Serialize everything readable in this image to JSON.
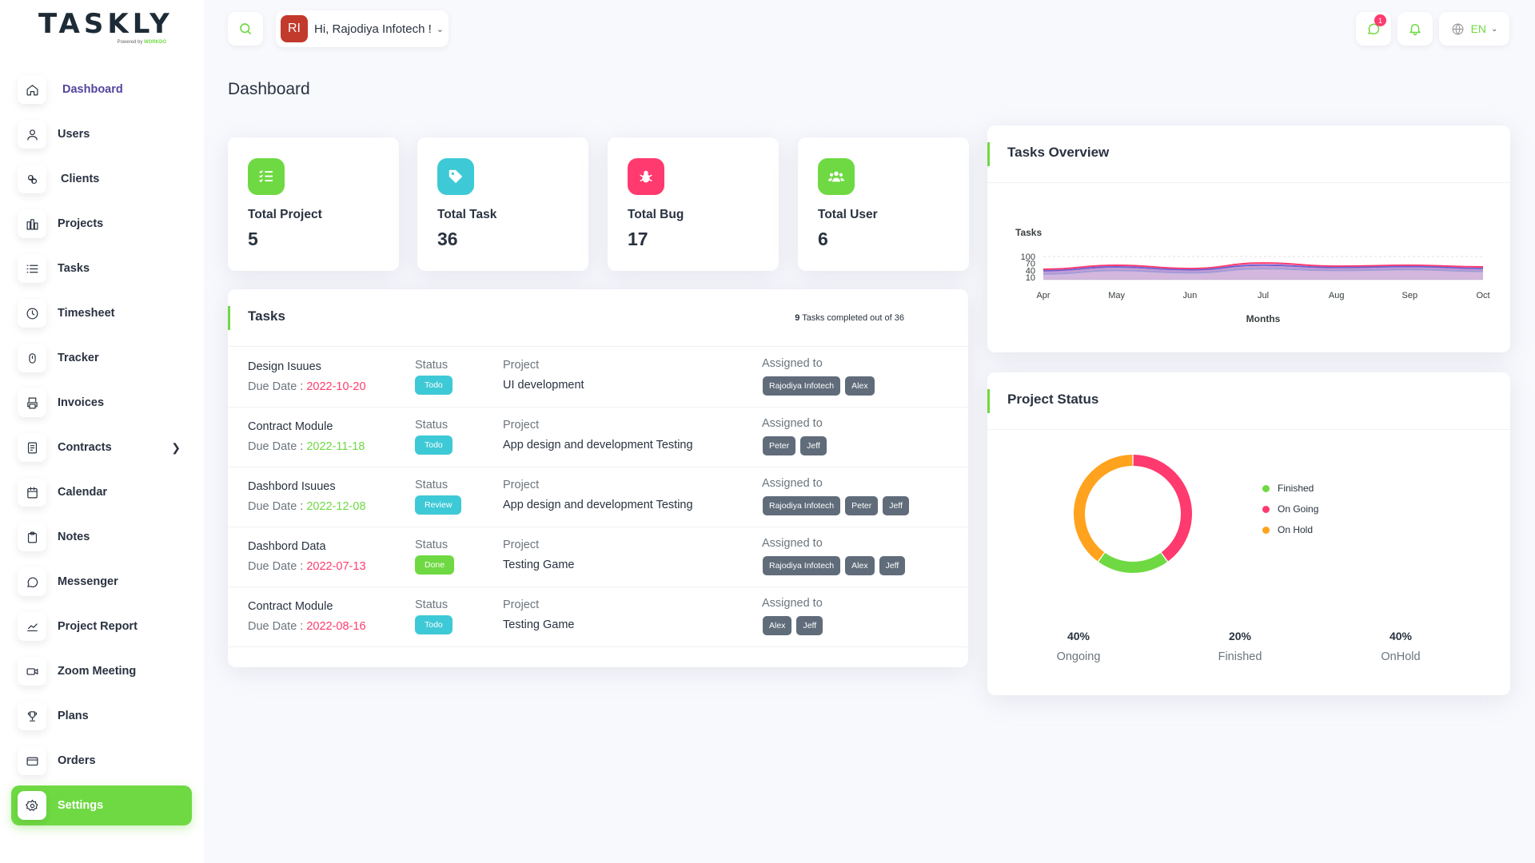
{
  "logo": {
    "text": "TASKLY",
    "powered": "Powered by",
    "brand": "WORKDO"
  },
  "sidebar": {
    "items": [
      {
        "label": "Dashboard",
        "icon": "home-icon"
      },
      {
        "label": "Users",
        "icon": "user-icon"
      },
      {
        "label": "Clients",
        "icon": "clients-icon"
      },
      {
        "label": "Projects",
        "icon": "projects-icon"
      },
      {
        "label": "Tasks",
        "icon": "list-icon"
      },
      {
        "label": "Timesheet",
        "icon": "clock-icon"
      },
      {
        "label": "Tracker",
        "icon": "tracker-icon"
      },
      {
        "label": "Invoices",
        "icon": "printer-icon"
      },
      {
        "label": "Contracts",
        "icon": "contract-icon"
      },
      {
        "label": "Calendar",
        "icon": "calendar-icon"
      },
      {
        "label": "Notes",
        "icon": "clipboard-icon"
      },
      {
        "label": "Messenger",
        "icon": "message-icon"
      },
      {
        "label": "Project Report",
        "icon": "chart-line-icon"
      },
      {
        "label": "Zoom Meeting",
        "icon": "video-icon"
      },
      {
        "label": "Plans",
        "icon": "trophy-icon"
      },
      {
        "label": "Orders",
        "icon": "credit-card-icon"
      },
      {
        "label": "Settings",
        "icon": "settings-icon"
      }
    ]
  },
  "header": {
    "avatar": "RI",
    "greeting": "Hi, Rajodiya Infotech !",
    "notification_count": "1",
    "language": "EN"
  },
  "page_title": "Dashboard",
  "stats": [
    {
      "label": "Total Project",
      "value": "5",
      "color": "#6fd943",
      "icon": "list-check-icon"
    },
    {
      "label": "Total Task",
      "value": "36",
      "color": "#3ec9d6",
      "icon": "tag-icon"
    },
    {
      "label": "Total Bug",
      "value": "17",
      "color": "#ff3a6e",
      "icon": "bug-icon"
    },
    {
      "label": "Total User",
      "value": "6",
      "color": "#6fd943",
      "icon": "users-icon"
    }
  ],
  "tasks_card": {
    "title": "Tasks",
    "completed": "9",
    "completed_text": "Tasks completed out of 36",
    "status_label": "Status",
    "project_label": "Project",
    "assigned_label": "Assigned to",
    "due_label": "Due Date : ",
    "rows": [
      {
        "name": "Design Isuues",
        "due": "2022-10-20",
        "due_color": "red",
        "status": "Todo",
        "project": "UI development",
        "assigned": [
          "Rajodiya Infotech",
          "Alex"
        ]
      },
      {
        "name": "Contract Module",
        "due": "2022-11-18",
        "due_color": "green",
        "status": "Todo",
        "project": "App design and development Testing",
        "assigned": [
          "Peter",
          "Jeff"
        ]
      },
      {
        "name": "Dashbord Isuues",
        "due": "2022-12-08",
        "due_color": "green",
        "status": "Review",
        "project": "App design and development Testing",
        "assigned": [
          "Rajodiya Infotech",
          "Peter",
          "Jeff"
        ]
      },
      {
        "name": "Dashbord Data",
        "due": "2022-07-13",
        "due_color": "red",
        "status": "Done",
        "project": "Testing Game",
        "assigned": [
          "Rajodiya Infotech",
          "Alex",
          "Jeff"
        ]
      },
      {
        "name": "Contract Module",
        "due": "2022-08-16",
        "due_color": "red",
        "status": "Todo",
        "project": "Testing Game",
        "assigned": [
          "Alex",
          "Jeff"
        ]
      }
    ]
  },
  "tasks_overview": {
    "title": "Tasks Overview"
  },
  "chart_data": [
    {
      "type": "area",
      "title": "Tasks",
      "xlabel": "Months",
      "ylabel": "",
      "categories": [
        "Apr",
        "May",
        "Jun",
        "Jul",
        "Aug",
        "Sep",
        "Oct"
      ],
      "y_ticks": [
        10,
        40,
        70,
        100
      ],
      "ylim": [
        0,
        100
      ],
      "series": [
        {
          "color": "#ff3a6e",
          "values": [
            45,
            62,
            48,
            72,
            58,
            62,
            55
          ]
        },
        {
          "color": "#6c63d6",
          "values": [
            38,
            55,
            42,
            63,
            52,
            56,
            48
          ]
        },
        {
          "color": "#c39bd3",
          "values": [
            32,
            48,
            36,
            56,
            46,
            50,
            42
          ]
        },
        {
          "color": "#a19bd8",
          "values": [
            25,
            40,
            30,
            48,
            40,
            44,
            36
          ]
        }
      ]
    },
    {
      "type": "pie",
      "title": "Project Status",
      "labels": [
        "Finished",
        "On Going",
        "On Hold"
      ],
      "values": [
        20,
        40,
        40
      ],
      "colors": [
        "#6fd943",
        "#ff3a6e",
        "#ffa21d"
      ]
    }
  ],
  "project_status": {
    "title": "Project Status",
    "legend": [
      {
        "label": "Finished",
        "color": "#6fd943"
      },
      {
        "label": "On Going",
        "color": "#ff3a6e"
      },
      {
        "label": "On Hold",
        "color": "#ffa21d"
      }
    ],
    "stats": [
      {
        "pct": "40%",
        "label": "Ongoing"
      },
      {
        "pct": "20%",
        "label": "Finished"
      },
      {
        "pct": "40%",
        "label": "OnHold"
      }
    ]
  }
}
